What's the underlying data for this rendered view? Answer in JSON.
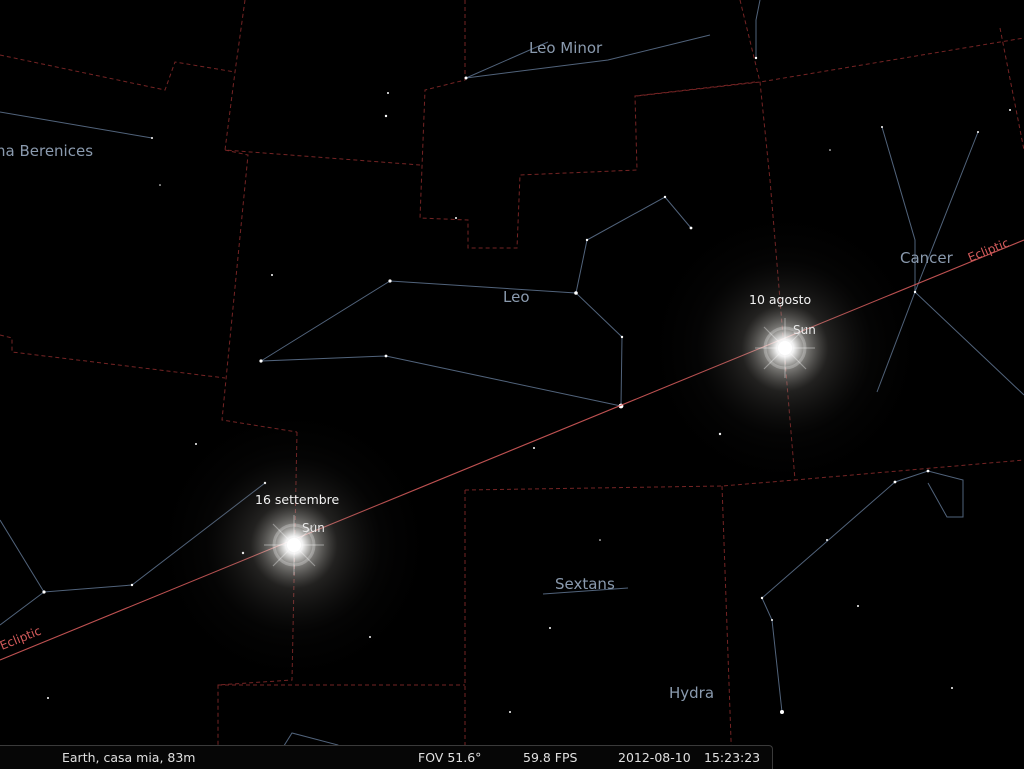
{
  "constellations": {
    "leo_minor": "Leo Minor",
    "coma_berenices": "na Berenices",
    "leo": "Leo",
    "cancer": "Cancer",
    "sextans": "Sextans",
    "hydra": "Hydra"
  },
  "ecliptic_label": "Ecliptic",
  "suns": [
    {
      "name": "Sun",
      "date": "10 agosto"
    },
    {
      "name": "Sun",
      "date": "16 settembre"
    }
  ],
  "status": {
    "location": "Earth, casa mia, 83m",
    "fov": "FOV 51.6°",
    "fps": "59.8 FPS",
    "date": "2012-08-10",
    "time": "15:23:23"
  },
  "colors": {
    "background": "#000000",
    "ecliptic": "#d25a5a",
    "boundaries": "#8a2a2a",
    "constellation_lines": "#5a6e88"
  }
}
